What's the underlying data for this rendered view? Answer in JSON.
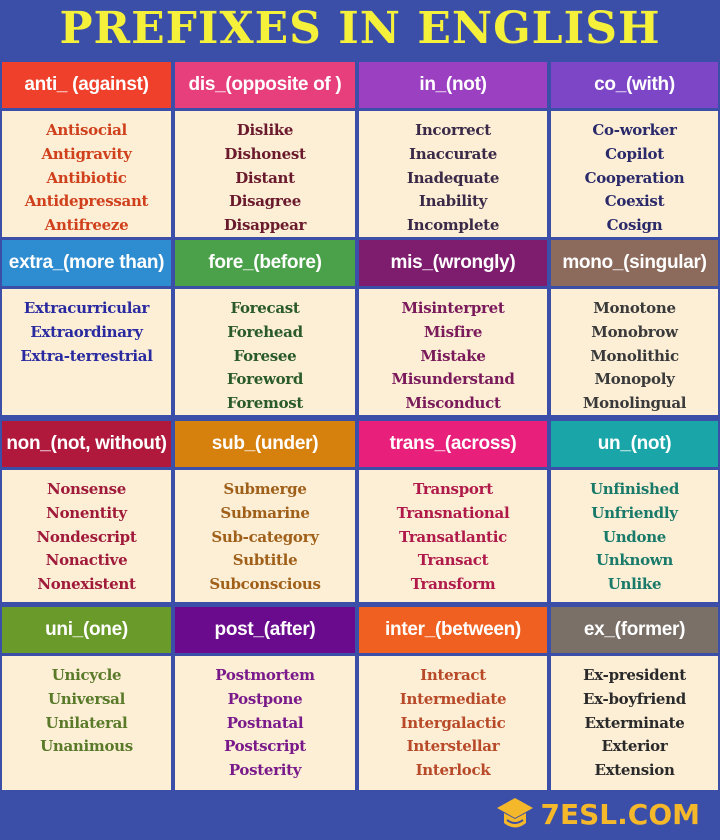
{
  "title": "PREFIXES IN ENGLISH",
  "background_color": "#3b4ea8",
  "title_color": "#f5f03a",
  "card_body_color": "#fcefd6",
  "prefixes": [
    {
      "label": "anti_ (against)",
      "header_color": "#ee402a",
      "word_color": "#d0401c",
      "words": [
        "Antisocial",
        "Antigravity",
        "Antibiotic",
        "Antidepressant",
        "Antifreeze"
      ]
    },
    {
      "label": "dis_(opposite of )",
      "header_color": "#e63f7c",
      "word_color": "#6a1a2c",
      "words": [
        "Dislike",
        "Dishonest",
        "Distant",
        "Disagree",
        "Disappear"
      ]
    },
    {
      "label": "in_(not)",
      "header_color": "#9c40c2",
      "word_color": "#3a2a48",
      "words": [
        "Incorrect",
        "Inaccurate",
        "Inadequate",
        "Inability",
        "Incomplete"
      ]
    },
    {
      "label": "co_(with)",
      "header_color": "#7c46c6",
      "word_color": "#2a2a6a",
      "words": [
        "Co-worker",
        "Copilot",
        "Cooperation",
        "Coexist",
        "Cosign"
      ]
    },
    {
      "label": "extra_(more than)",
      "header_color": "#2e8cd0",
      "word_color": "#2a2aa0",
      "words": [
        "Extracurricular",
        "Extraordinary",
        "Extra-terrestrial"
      ]
    },
    {
      "label": "fore_(before)",
      "header_color": "#4ba04a",
      "word_color": "#2a5a2a",
      "words": [
        "Forecast",
        "Forehead",
        "Foresee",
        "Foreword",
        "Foremost"
      ]
    },
    {
      "label": "mis_(wrongly)",
      "header_color": "#7e1c6e",
      "word_color": "#7a1a5a",
      "words": [
        "Misinterpret",
        "Misfire",
        "Mistake",
        "Misunderstand",
        "Misconduct"
      ]
    },
    {
      "label": "mono_(singular)",
      "header_color": "#8c6a5c",
      "word_color": "#3a3a3a",
      "words": [
        "Monotone",
        "Monobrow",
        "Monolithic",
        "Monopoly",
        "Monolingual"
      ]
    },
    {
      "label": "non_(not, without)",
      "header_color": "#b0183c",
      "word_color": "#a01a3a",
      "words": [
        "Nonsense",
        "Nonentity",
        "Nondescript",
        "Nonactive",
        "Nonexistent"
      ]
    },
    {
      "label": "sub_(under)",
      "header_color": "#d6800e",
      "word_color": "#a0601a",
      "words": [
        "Submerge",
        "Submarine",
        "Sub-category",
        "Subtitle",
        "Subconscious"
      ]
    },
    {
      "label": "trans_(across)",
      "header_color": "#e8207c",
      "word_color": "#b01a4a",
      "words": [
        "Transport",
        "Transnational",
        "Transatlantic",
        "Transact",
        "Transform"
      ]
    },
    {
      "label": "un_(not)",
      "header_color": "#1aa6a8",
      "word_color": "#1a7a6a",
      "words": [
        "Unfinished",
        "Unfriendly",
        "Undone",
        "Unknown",
        "Unlike"
      ]
    },
    {
      "label": "uni_(one)",
      "header_color": "#6a9a2a",
      "word_color": "#5a7a2a",
      "words": [
        "Unicycle",
        "Universal",
        "Unilateral",
        "Unanimous"
      ]
    },
    {
      "label": "post_(after)",
      "header_color": "#6a0a8c",
      "word_color": "#7a1a8a",
      "words": [
        "Postmortem",
        "Postpone",
        "Postnatal",
        "Postscript",
        "Posterity"
      ]
    },
    {
      "label": "inter_(between)",
      "header_color": "#f06020",
      "word_color": "#b84a2a",
      "words": [
        "Interact",
        "Intermediate",
        "Intergalactic",
        "Interstellar",
        "Interlock"
      ]
    },
    {
      "label": "ex_(former)",
      "header_color": "#7a7068",
      "word_color": "#2a2a2a",
      "words": [
        "Ex-president",
        "Ex-boyfriend",
        "Exterminate",
        "Exterior",
        "Extension"
      ]
    }
  ],
  "logo": {
    "text": "7ESL.COM",
    "icon": "graduation-cap-icon",
    "color": "#f5b82a"
  }
}
